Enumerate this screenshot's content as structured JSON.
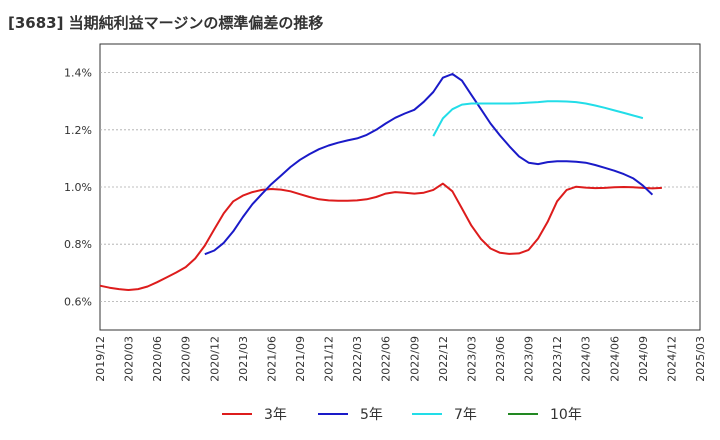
{
  "title": "[3683]  当期純利益マージンの標準偏差の推移",
  "chart_data": {
    "type": "line",
    "title": "[3683]  当期純利益マージンの標準偏差の推移",
    "xlabel": "",
    "ylabel": "",
    "ylim": [
      0.5,
      1.5
    ],
    "yticks": [
      0.6,
      0.8,
      1.0,
      1.2,
      1.4
    ],
    "ytick_labels": [
      "0.6%",
      "0.8%",
      "1.0%",
      "1.2%",
      "1.4%"
    ],
    "x_ticks": [
      "2019/12",
      "2020/03",
      "2020/06",
      "2020/09",
      "2020/12",
      "2021/03",
      "2021/06",
      "2021/09",
      "2021/12",
      "2022/03",
      "2022/06",
      "2022/09",
      "2022/12",
      "2023/03",
      "2023/06",
      "2023/09",
      "2023/12",
      "2024/03",
      "2024/06",
      "2024/09",
      "2024/12",
      "2025/03"
    ],
    "grid": true,
    "legend_position": "bottom",
    "series": [
      {
        "name": "3年",
        "color": "#dd1c1c",
        "start": "2019/12",
        "values": [
          0.655,
          0.648,
          0.643,
          0.64,
          0.643,
          0.652,
          0.667,
          0.684,
          0.701,
          0.72,
          0.75,
          0.795,
          0.852,
          0.908,
          0.95,
          0.97,
          0.982,
          0.99,
          0.993,
          0.991,
          0.985,
          0.975,
          0.965,
          0.957,
          0.953,
          0.952,
          0.952,
          0.953,
          0.957,
          0.965,
          0.977,
          0.982,
          0.98,
          0.977,
          0.98,
          0.99,
          1.012,
          0.985,
          0.925,
          0.865,
          0.818,
          0.785,
          0.77,
          0.766,
          0.768,
          0.78,
          0.82,
          0.878,
          0.95,
          0.99,
          1.001,
          0.998,
          0.996,
          0.997,
          0.999,
          1.0,
          0.999,
          0.997,
          0.995,
          0.997
        ]
      },
      {
        "name": "5年",
        "color": "#1a1ac8",
        "start": "2020/11",
        "values": [
          0.765,
          0.778,
          0.805,
          0.845,
          0.895,
          0.94,
          0.976,
          1.01,
          1.04,
          1.07,
          1.095,
          1.115,
          1.132,
          1.145,
          1.155,
          1.163,
          1.17,
          1.182,
          1.2,
          1.222,
          1.242,
          1.257,
          1.27,
          1.298,
          1.332,
          1.382,
          1.395,
          1.372,
          1.322,
          1.272,
          1.222,
          1.18,
          1.142,
          1.107,
          1.085,
          1.08,
          1.087,
          1.09,
          1.09,
          1.088,
          1.085,
          1.077,
          1.067,
          1.057,
          1.045,
          1.03,
          1.005,
          0.973
        ]
      },
      {
        "name": "7年",
        "color": "#22dde8",
        "start": "2022/11",
        "values": [
          1.178,
          1.24,
          1.272,
          1.288,
          1.292,
          1.292,
          1.292,
          1.292,
          1.292,
          1.293,
          1.295,
          1.297,
          1.3,
          1.3,
          1.299,
          1.297,
          1.292,
          1.285,
          1.277,
          1.268,
          1.259,
          1.25,
          1.241
        ]
      },
      {
        "name": "10年",
        "color": "#228822",
        "start": "",
        "values": []
      }
    ]
  }
}
